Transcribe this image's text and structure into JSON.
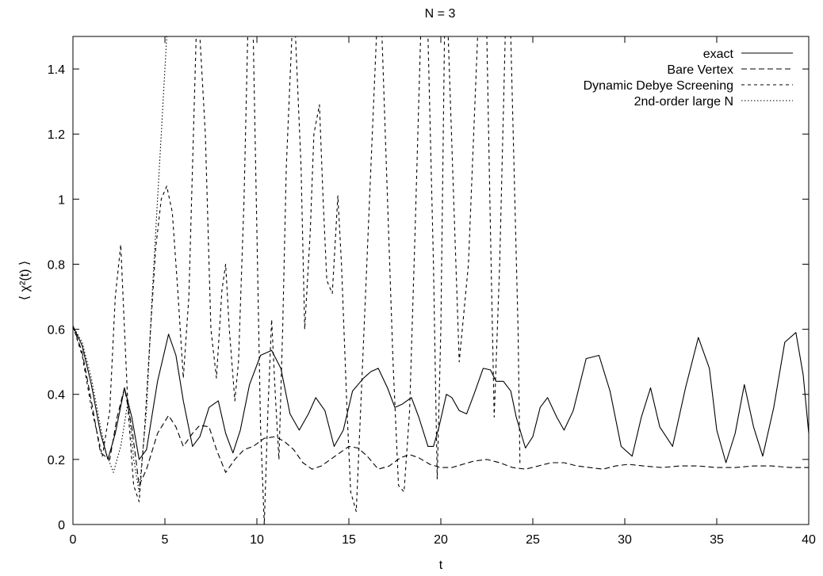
{
  "chart_data": {
    "type": "line",
    "title": "N = 3",
    "xlabel": "t",
    "ylabel": "⟨ χ²(t) ⟩",
    "xlim": [
      0,
      40
    ],
    "ylim": [
      0,
      1.5
    ],
    "xticks": [
      0,
      5,
      10,
      15,
      20,
      25,
      30,
      35,
      40
    ],
    "yticks": [
      0,
      0.2,
      0.4,
      0.6,
      0.8,
      1,
      1.2,
      1.4
    ],
    "ytick_labels": [
      "0",
      "0.2",
      "0.4",
      "0.6",
      "0.8",
      "1",
      "1.2",
      "1.4"
    ],
    "grid": false,
    "legend_position": "top-right",
    "series": [
      {
        "name": "exact",
        "style": "solid",
        "x": [
          0,
          0.5,
          1.0,
          1.5,
          1.9,
          2.3,
          2.8,
          3.2,
          3.6,
          4.0,
          4.6,
          5.2,
          5.6,
          6.0,
          6.5,
          6.9,
          7.4,
          7.9,
          8.3,
          8.7,
          9.1,
          9.6,
          10.2,
          10.8,
          11.3,
          11.8,
          12.3,
          12.8,
          13.2,
          13.7,
          14.2,
          14.7,
          15.2,
          15.8,
          16.2,
          16.6,
          17.1,
          17.5,
          17.9,
          18.4,
          18.8,
          19.3,
          19.6,
          19.9,
          20.3,
          20.6,
          21.0,
          21.4,
          21.8,
          22.3,
          22.7,
          23.0,
          23.4,
          23.8,
          24.1,
          24.6,
          25.0,
          25.4,
          25.8,
          26.3,
          26.7,
          27.2,
          27.9,
          28.6,
          29.2,
          29.8,
          30.4,
          30.9,
          31.4,
          31.9,
          32.6,
          33.3,
          34.0,
          34.6,
          35.0,
          35.5,
          36.0,
          36.5,
          37.0,
          37.5,
          38.1,
          38.7,
          39.3,
          39.7,
          40.0
        ],
        "y": [
          0.61,
          0.55,
          0.43,
          0.28,
          0.2,
          0.28,
          0.42,
          0.33,
          0.2,
          0.23,
          0.44,
          0.585,
          0.52,
          0.38,
          0.24,
          0.27,
          0.36,
          0.38,
          0.28,
          0.22,
          0.29,
          0.43,
          0.52,
          0.535,
          0.48,
          0.34,
          0.29,
          0.34,
          0.39,
          0.35,
          0.24,
          0.29,
          0.41,
          0.45,
          0.47,
          0.48,
          0.42,
          0.36,
          0.37,
          0.39,
          0.33,
          0.24,
          0.24,
          0.3,
          0.4,
          0.39,
          0.35,
          0.34,
          0.4,
          0.48,
          0.475,
          0.44,
          0.44,
          0.41,
          0.33,
          0.235,
          0.27,
          0.36,
          0.39,
          0.33,
          0.29,
          0.35,
          0.51,
          0.52,
          0.41,
          0.24,
          0.21,
          0.33,
          0.42,
          0.3,
          0.24,
          0.42,
          0.575,
          0.48,
          0.29,
          0.19,
          0.28,
          0.43,
          0.3,
          0.21,
          0.36,
          0.56,
          0.59,
          0.46,
          0.28
        ]
      },
      {
        "name": "Bare Vertex",
        "style": "dashed",
        "x": [
          0,
          0.5,
          1.0,
          1.5,
          2.0,
          2.4,
          2.8,
          3.2,
          3.6,
          4.0,
          4.6,
          5.2,
          5.6,
          6.0,
          6.5,
          6.9,
          7.4,
          7.8,
          8.3,
          8.8,
          9.3,
          9.8,
          10.4,
          11.0,
          11.5,
          12.0,
          12.5,
          13.0,
          13.5,
          14.0,
          14.5,
          15.0,
          15.5,
          16.0,
          16.6,
          17.2,
          17.8,
          18.3,
          18.8,
          19.4,
          20.0,
          20.6,
          21.2,
          21.8,
          22.5,
          23.2,
          23.9,
          24.6,
          25.3,
          26.0,
          26.7,
          27.4,
          28.1,
          28.8,
          29.5,
          30.2,
          31.0,
          32.0,
          33.0,
          34.0,
          35.0,
          36.0,
          37.0,
          38.0,
          39.0,
          40.0
        ],
        "y": [
          0.61,
          0.53,
          0.38,
          0.22,
          0.2,
          0.33,
          0.42,
          0.3,
          0.12,
          0.17,
          0.28,
          0.335,
          0.3,
          0.24,
          0.28,
          0.305,
          0.3,
          0.23,
          0.16,
          0.2,
          0.23,
          0.24,
          0.265,
          0.27,
          0.255,
          0.23,
          0.19,
          0.17,
          0.18,
          0.2,
          0.22,
          0.24,
          0.235,
          0.21,
          0.17,
          0.18,
          0.205,
          0.215,
          0.205,
          0.185,
          0.175,
          0.175,
          0.185,
          0.195,
          0.2,
          0.19,
          0.175,
          0.17,
          0.18,
          0.19,
          0.19,
          0.18,
          0.175,
          0.17,
          0.18,
          0.185,
          0.18,
          0.175,
          0.18,
          0.18,
          0.175,
          0.175,
          0.18,
          0.18,
          0.175,
          0.175
        ]
      },
      {
        "name": "Dynamic Debye Screening",
        "style": "dotted-dashed",
        "x": [
          0,
          0.5,
          1.0,
          1.6,
          2.0,
          2.3,
          2.6,
          2.8,
          3.0,
          3.3,
          3.6,
          3.9,
          4.2,
          4.5,
          4.8,
          5.1,
          5.4,
          5.7,
          6.0,
          6.3,
          6.5,
          6.7,
          6.9,
          7.2,
          7.5,
          7.8,
          8.1,
          8.3,
          8.5,
          8.8,
          9.0,
          9.3,
          9.5,
          9.8,
          10.0,
          10.2,
          10.4,
          10.6,
          10.8,
          11.0,
          11.2,
          11.4,
          11.6,
          11.9,
          12.1,
          12.4,
          12.6,
          12.9,
          13.1,
          13.4,
          13.6,
          13.8,
          14.1,
          14.4,
          14.6,
          14.9,
          15.1,
          15.4,
          15.6,
          15.9,
          16.2,
          16.5,
          16.8,
          17.1,
          17.4,
          17.7,
          18.0,
          18.3,
          18.6,
          18.9,
          19.3,
          19.6,
          19.8,
          20.0,
          20.2,
          20.4,
          20.7,
          21.0,
          21.5,
          22.0,
          22.5,
          22.7,
          22.9,
          23.2,
          23.5,
          23.8,
          24.2,
          24.3
        ],
        "y": [
          0.61,
          0.52,
          0.36,
          0.21,
          0.35,
          0.7,
          0.86,
          0.6,
          0.35,
          0.12,
          0.07,
          0.3,
          0.58,
          0.85,
          1.0,
          1.04,
          0.96,
          0.72,
          0.45,
          0.7,
          1.1,
          1.5,
          1.5,
          1.2,
          0.6,
          0.45,
          0.72,
          0.8,
          0.6,
          0.38,
          0.5,
          1.0,
          1.5,
          1.5,
          0.9,
          0.3,
          0.0,
          0.35,
          0.63,
          0.4,
          0.2,
          0.6,
          1.1,
          1.5,
          1.5,
          1.1,
          0.6,
          0.9,
          1.2,
          1.29,
          1.0,
          0.75,
          0.71,
          1.01,
          0.8,
          0.35,
          0.1,
          0.04,
          0.3,
          0.7,
          1.1,
          1.5,
          1.5,
          1.0,
          0.5,
          0.12,
          0.1,
          0.35,
          0.9,
          1.5,
          1.5,
          0.8,
          0.14,
          0.6,
          1.5,
          1.5,
          1.0,
          0.5,
          0.8,
          1.5,
          1.5,
          0.9,
          0.33,
          0.8,
          1.5,
          1.5,
          0.6,
          0.18
        ]
      },
      {
        "name": "2nd-order large N",
        "style": "dotted",
        "x": [
          0,
          0.5,
          1.0,
          1.5,
          1.8,
          2.2,
          2.6,
          3.0,
          3.3,
          3.6,
          4.0,
          4.3,
          4.6,
          4.8,
          5.0,
          5.1
        ],
        "y": [
          0.61,
          0.56,
          0.45,
          0.3,
          0.22,
          0.16,
          0.24,
          0.38,
          0.2,
          0.1,
          0.35,
          0.7,
          1.0,
          1.2,
          1.4,
          1.5
        ]
      }
    ]
  }
}
